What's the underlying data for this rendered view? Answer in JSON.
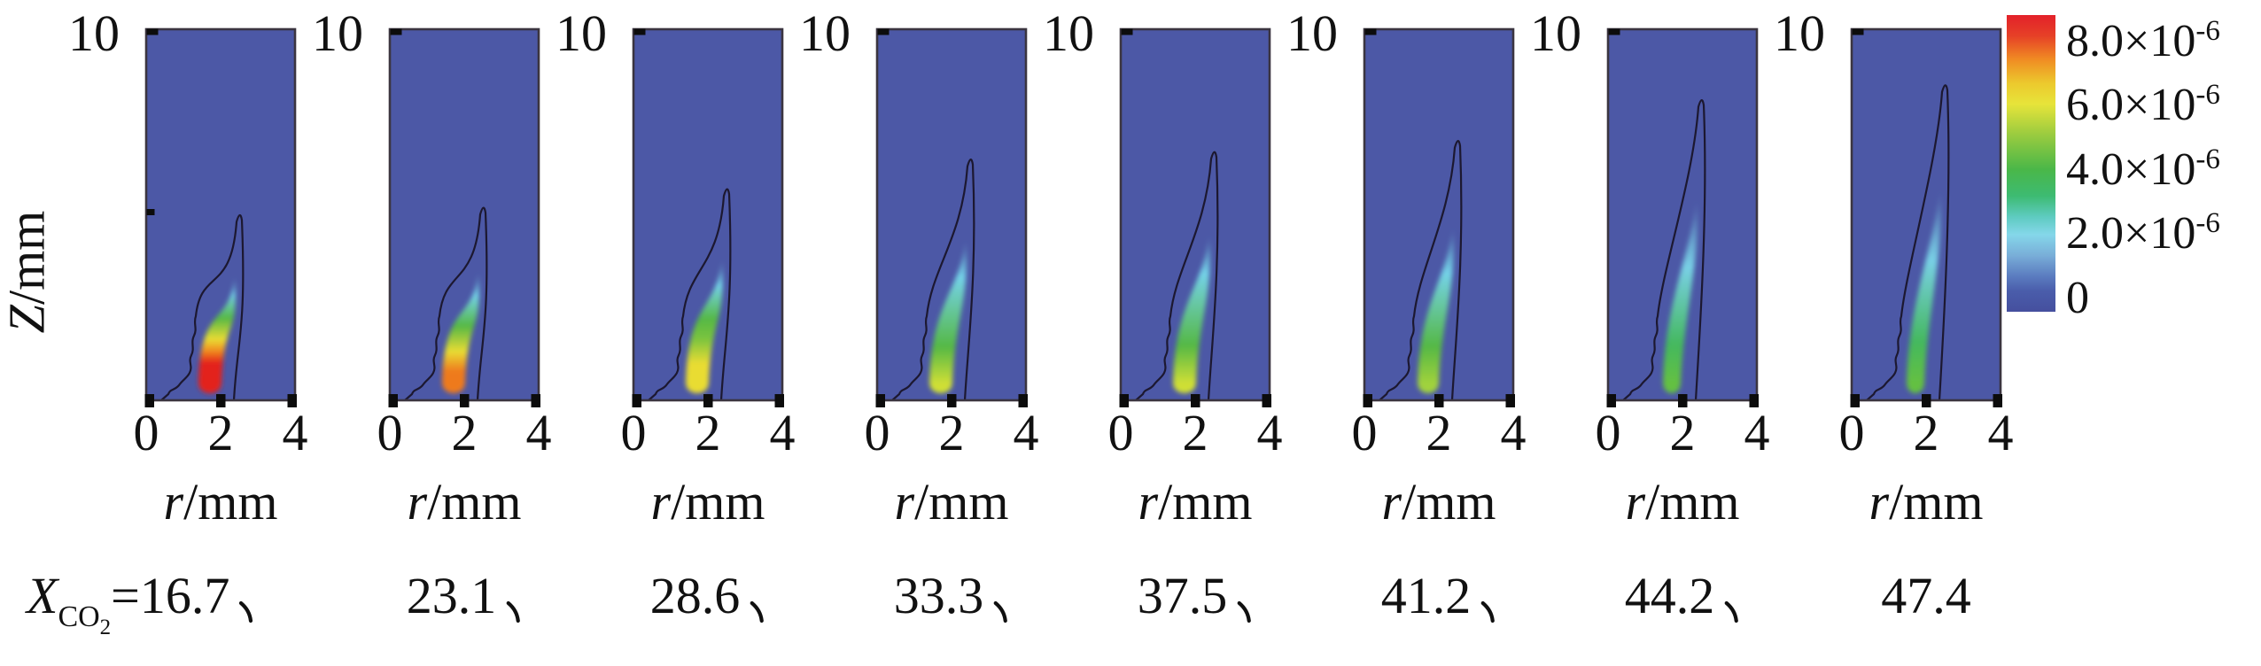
{
  "figure": {
    "y_axis": {
      "label_main": "Z",
      "label_unit": "/mm",
      "top_tick": "10"
    },
    "x_axis": {
      "ticks": [
        "0",
        "2",
        "4"
      ],
      "label_main": "r",
      "label_unit": "/mm"
    },
    "prefix": {
      "x": "X",
      "sub_co": "CO",
      "sub_2": "2",
      "equals": "="
    },
    "separator_char": "、",
    "colorbar_ticks": [
      {
        "mantissa": "8.0×10",
        "exp": "-6"
      },
      {
        "mantissa": "6.0×10",
        "exp": "-6"
      },
      {
        "mantissa": "4.0×10",
        "exp": "-6"
      },
      {
        "mantissa": "2.0×10",
        "exp": "-6"
      },
      {
        "mantissa": "0",
        "exp": ""
      }
    ],
    "panels": [
      {
        "x_co2": "16.7",
        "sep": "、"
      },
      {
        "x_co2": "23.1",
        "sep": "、"
      },
      {
        "x_co2": "28.6",
        "sep": "、"
      },
      {
        "x_co2": "33.3",
        "sep": "、"
      },
      {
        "x_co2": "37.5",
        "sep": "、"
      },
      {
        "x_co2": "41.2",
        "sep": "、"
      },
      {
        "x_co2": "44.2",
        "sep": "、"
      },
      {
        "x_co2": "47.4",
        "sep": ""
      }
    ],
    "colors": {
      "panel_background": "#4c58a6",
      "panel_border": "#3b3540",
      "contour_line": "#1c1830",
      "tick_mark": "#0c0c0c",
      "text": "#111111"
    }
  },
  "chart_data": {
    "type": "heatmap",
    "subtype": "contour-panel-series",
    "description": "Eight side-by-side 2D flame contour maps at increasing CO2 mole fraction, shared axes and one shared rainbow colorbar",
    "xlabel": "r/mm",
    "ylabel": "Z/mm",
    "x_range": [
      0,
      4
    ],
    "y_range": [
      0,
      10
    ],
    "x_ticks": [
      0,
      2,
      4
    ],
    "y_tick_shown": 10,
    "colorbar": {
      "tick_values": [
        8e-06,
        6e-06,
        4e-06,
        2e-06,
        0
      ],
      "tick_labels": [
        "8.0×10⁻⁶",
        "6.0×10⁻⁶",
        "4.0×10⁻⁶",
        "2.0×10⁻⁶",
        "0"
      ],
      "orientation": "vertical",
      "gradient_top_to_bottom": [
        {
          "c": "#e3212a",
          "pos": 0
        },
        {
          "c": "#e64027",
          "pos": 7
        },
        {
          "c": "#f08c23",
          "pos": 15
        },
        {
          "c": "#ecc92d",
          "pos": 23
        },
        {
          "c": "#e7e43a",
          "pos": 30
        },
        {
          "c": "#9ccc3f",
          "pos": 40
        },
        {
          "c": "#4ab748",
          "pos": 52
        },
        {
          "c": "#3dbb72",
          "pos": 61
        },
        {
          "c": "#5ecbc0",
          "pos": 68
        },
        {
          "c": "#85d7ea",
          "pos": 74
        },
        {
          "c": "#79aed8",
          "pos": 81
        },
        {
          "c": "#5b7cc0",
          "pos": 88
        },
        {
          "c": "#4a5dab",
          "pos": 93
        },
        {
          "c": "#454f9e",
          "pos": 100
        }
      ]
    },
    "panels": [
      {
        "X_CO2": 16.7,
        "contour_tip_z_mm": 5.0,
        "peak_value_est": 8e-06,
        "core_w": 13,
        "core_gradient": [
          {
            "c": "#e3231a",
            "o": 0.03
          },
          {
            "c": "#e3231a",
            "o": 0.26
          },
          {
            "c": "#f08a20",
            "o": 0.36
          },
          {
            "c": "#e9dc33",
            "o": 0.46
          },
          {
            "c": "#55b845",
            "o": 0.64
          },
          {
            "c": "#74d2e8",
            "o": 0.84
          },
          {
            "c": "#74d2e8",
            "o": 1,
            "a": 0
          }
        ]
      },
      {
        "X_CO2": 23.1,
        "contour_tip_z_mm": 5.2,
        "peak_value_est": 7e-06,
        "core_w": 13,
        "core_gradient": [
          {
            "c": "#ee7a1e",
            "o": 0.04
          },
          {
            "c": "#ee7a1e",
            "o": 0.18
          },
          {
            "c": "#e9dc33",
            "o": 0.34
          },
          {
            "c": "#55b845",
            "o": 0.55
          },
          {
            "c": "#74d2e8",
            "o": 0.8
          },
          {
            "c": "#74d2e8",
            "o": 1,
            "a": 0
          }
        ]
      },
      {
        "X_CO2": 28.6,
        "contour_tip_z_mm": 5.7,
        "peak_value_est": 6e-06,
        "core_w": 13,
        "core_gradient": [
          {
            "c": "#e9dc33",
            "o": 0.05
          },
          {
            "c": "#e9dc33",
            "o": 0.22
          },
          {
            "c": "#7cc43e",
            "o": 0.4
          },
          {
            "c": "#55b845",
            "o": 0.55
          },
          {
            "c": "#74d2e8",
            "o": 0.8
          },
          {
            "c": "#74d2e8",
            "o": 1,
            "a": 0
          }
        ]
      },
      {
        "X_CO2": 33.3,
        "contour_tip_z_mm": 6.5,
        "peak_value_est": 5.5e-06,
        "core_w": 13,
        "core_gradient": [
          {
            "c": "#cfdf36",
            "o": 0.06
          },
          {
            "c": "#55b845",
            "o": 0.3
          },
          {
            "c": "#74d2e8",
            "o": 0.75
          },
          {
            "c": "#74d2e8",
            "o": 1,
            "a": 0
          }
        ]
      },
      {
        "X_CO2": 37.5,
        "contour_tip_z_mm": 6.7,
        "peak_value_est": 5e-06,
        "core_w": 13,
        "core_gradient": [
          {
            "c": "#cfdf36",
            "o": 0.06
          },
          {
            "c": "#55b845",
            "o": 0.3
          },
          {
            "c": "#74d2e8",
            "o": 0.75
          },
          {
            "c": "#74d2e8",
            "o": 1,
            "a": 0
          }
        ]
      },
      {
        "X_CO2": 41.2,
        "contour_tip_z_mm": 7.0,
        "peak_value_est": 4.5e-06,
        "core_w": 12,
        "core_gradient": [
          {
            "c": "#a0d23c",
            "o": 0.06
          },
          {
            "c": "#55b845",
            "o": 0.28
          },
          {
            "c": "#74d2e8",
            "o": 0.72
          },
          {
            "c": "#74d2e8",
            "o": 1,
            "a": 0
          }
        ]
      },
      {
        "X_CO2": 44.2,
        "contour_tip_z_mm": 8.1,
        "peak_value_est": 4e-06,
        "core_w": 10,
        "core_gradient": [
          {
            "c": "#63c043",
            "o": 0.06
          },
          {
            "c": "#44b85e",
            "o": 0.25
          },
          {
            "c": "#79d0e6",
            "o": 0.65
          },
          {
            "c": "#79d0e6",
            "o": 1,
            "a": 0
          }
        ]
      },
      {
        "X_CO2": 47.4,
        "contour_tip_z_mm": 8.5,
        "peak_value_est": 4e-06,
        "core_w": 10,
        "core_gradient": [
          {
            "c": "#63c043",
            "o": 0.06
          },
          {
            "c": "#44b85e",
            "o": 0.25
          },
          {
            "c": "#79d0e6",
            "o": 0.65
          },
          {
            "c": "#79d0e6",
            "o": 1,
            "a": 0
          }
        ]
      }
    ]
  }
}
